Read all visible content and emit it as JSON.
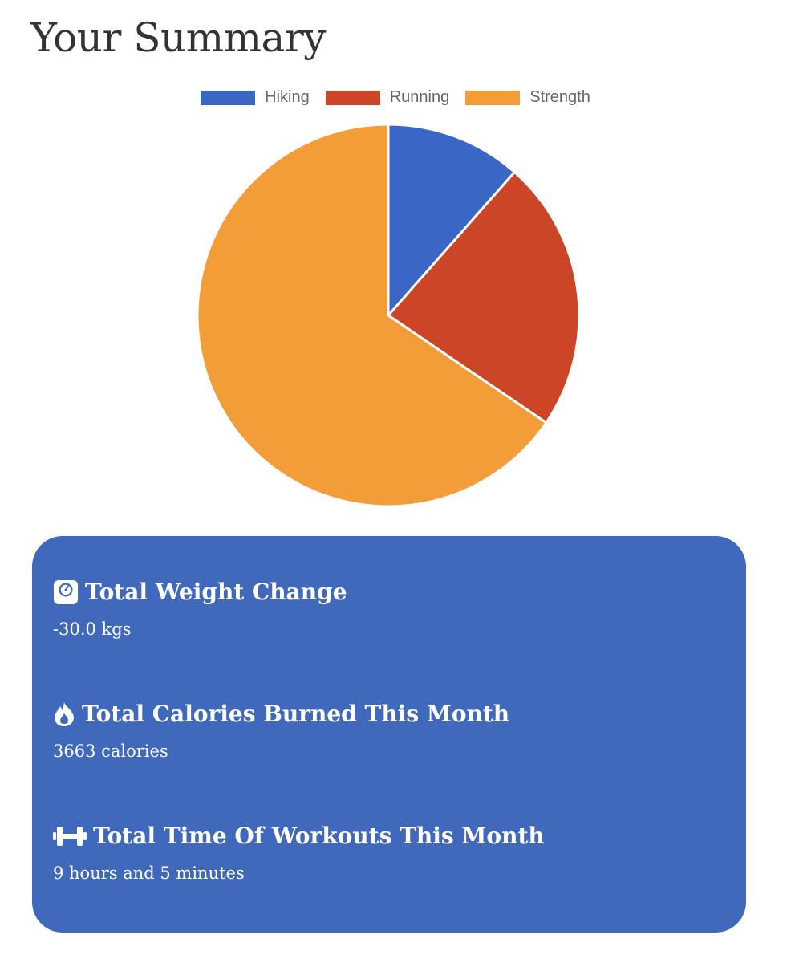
{
  "page": {
    "title": "Your Summary"
  },
  "chart_data": {
    "type": "pie",
    "categories": [
      "Hiking",
      "Running",
      "Strength"
    ],
    "values": [
      11.5,
      23.0,
      65.5
    ],
    "colors": [
      "#3a67c6",
      "#cc4527",
      "#f29d37"
    ],
    "legend": "top"
  },
  "stats": [
    {
      "icon": "weight-scale-icon",
      "label": "Total Weight Change",
      "value": "-30.0 kgs"
    },
    {
      "icon": "fire-icon",
      "label": "Total Calories Burned This Month",
      "value": "3663 calories"
    },
    {
      "icon": "dumbbell-icon",
      "label": "Total Time Of Workouts This Month",
      "value": "9 hours and 5 minutes"
    }
  ]
}
